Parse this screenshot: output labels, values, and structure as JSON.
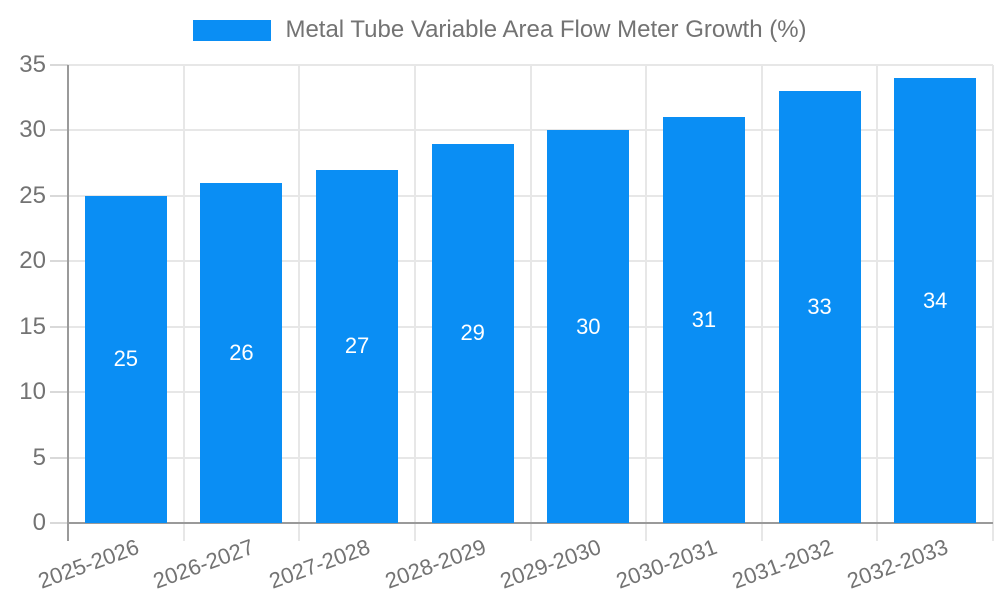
{
  "chart_data": {
    "type": "bar",
    "series_name": "Metal Tube Variable Area Flow Meter Growth (%)",
    "categories": [
      "2025-2026",
      "2026-2027",
      "2027-2028",
      "2028-2029",
      "2029-2030",
      "2030-2031",
      "2031-2032",
      "2032-2033"
    ],
    "values": [
      25,
      26,
      27,
      29,
      30,
      31,
      33,
      34
    ],
    "yticks": [
      0,
      5,
      10,
      15,
      20,
      25,
      30,
      35
    ],
    "ylim": [
      0,
      35
    ],
    "grid": true,
    "legend_position": "top-center",
    "x_label_rotation_deg": -20,
    "bar_labels_inside": true,
    "colors": {
      "bar": "#0a8ef4",
      "bar_label": "#ffffff",
      "axis_text": "#737373",
      "legend_text": "#737373",
      "gridline": "#e7e7e7",
      "axis_line": "#9a9a9a",
      "tick": "#d9d9d9",
      "background": "#ffffff"
    }
  }
}
